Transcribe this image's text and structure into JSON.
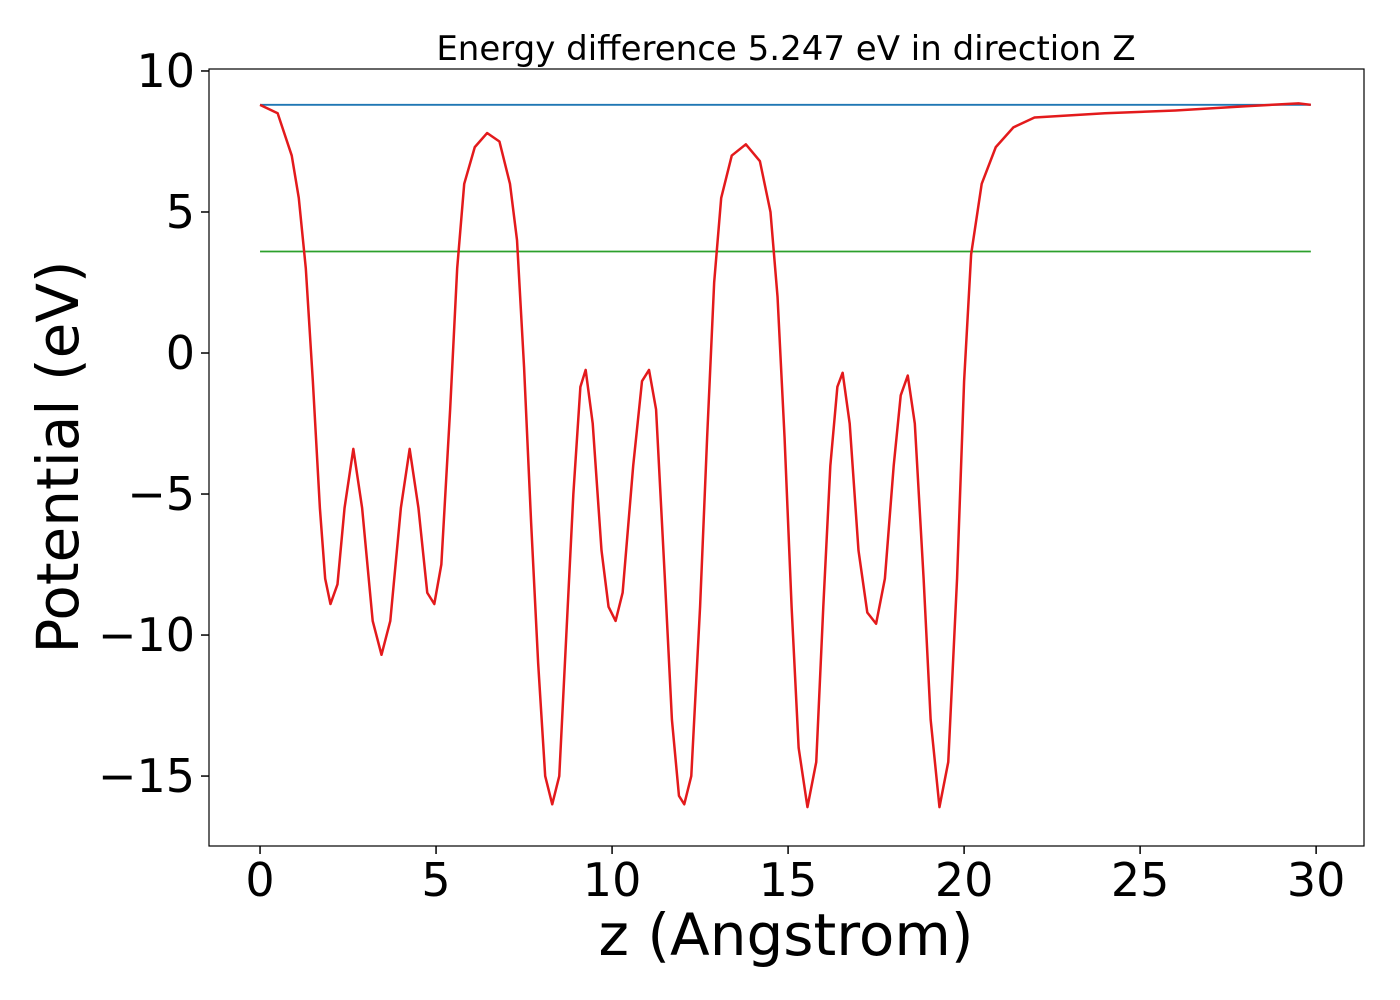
{
  "chart_data": {
    "type": "line",
    "title": "Energy difference 5.247 eV in direction Z",
    "x_label": "z (Angstrom)",
    "y_label": "Potential (eV)",
    "xlim": [
      -1.45,
      31.36
    ],
    "ylim": [
      -17.48,
      10.07
    ],
    "xticks": [
      0,
      5,
      10,
      15,
      20,
      25,
      30
    ],
    "yticks": [
      {
        "value": -15,
        "label": "−15"
      },
      {
        "value": -10,
        "label": "−10"
      },
      {
        "value": -5,
        "label": "−5"
      },
      0,
      5,
      10
    ],
    "series": [
      {
        "color": "#1f77b4",
        "x": [
          0,
          29.85
        ],
        "values": [
          8.8,
          8.8
        ]
      },
      {
        "color": "#2ca02c",
        "x": [
          0,
          29.85
        ],
        "values": [
          3.6,
          3.6
        ]
      },
      {
        "color": "#e31a1c",
        "x": [
          0,
          0.5,
          0.9,
          1.1,
          1.3,
          1.5,
          1.7,
          1.85,
          2.0,
          2.2,
          2.4,
          2.65,
          2.9,
          3.2,
          3.45,
          3.7,
          4.0,
          4.25,
          4.5,
          4.75,
          4.95,
          5.15,
          5.4,
          5.6,
          5.8,
          6.1,
          6.45,
          6.8,
          7.1,
          7.3,
          7.5,
          7.7,
          7.9,
          8.1,
          8.3,
          8.5,
          8.7,
          8.9,
          9.1,
          9.25,
          9.45,
          9.7,
          9.9,
          10.1,
          10.3,
          10.6,
          10.85,
          11.05,
          11.25,
          11.5,
          11.7,
          11.9,
          12.05,
          12.25,
          12.5,
          12.7,
          12.9,
          13.1,
          13.4,
          13.8,
          14.2,
          14.5,
          14.7,
          14.9,
          15.1,
          15.3,
          15.55,
          15.8,
          16.0,
          16.2,
          16.4,
          16.55,
          16.75,
          17.0,
          17.25,
          17.5,
          17.75,
          18.0,
          18.2,
          18.4,
          18.6,
          18.85,
          19.05,
          19.3,
          19.55,
          19.8,
          20.0,
          20.2,
          20.5,
          20.9,
          21.4,
          22,
          24,
          26,
          28,
          29.5,
          29.85
        ],
        "values": [
          8.8,
          8.5,
          7.0,
          5.5,
          3.0,
          -1.0,
          -5.5,
          -8.0,
          -8.9,
          -8.2,
          -5.5,
          -3.4,
          -5.5,
          -9.5,
          -10.7,
          -9.5,
          -5.5,
          -3.4,
          -5.5,
          -8.5,
          -8.9,
          -7.5,
          -2.0,
          3.0,
          6.0,
          7.3,
          7.8,
          7.5,
          6.0,
          4.0,
          -0.5,
          -6,
          -11,
          -15,
          -16,
          -15,
          -10,
          -5,
          -1.2,
          -0.6,
          -2.5,
          -7,
          -9,
          -9.5,
          -8.5,
          -4,
          -1,
          -0.6,
          -2,
          -8,
          -13,
          -15.7,
          -16,
          -15,
          -9,
          -3,
          2.5,
          5.5,
          7.0,
          7.4,
          6.8,
          5.0,
          2.0,
          -3.0,
          -9,
          -14,
          -16.1,
          -14.5,
          -9,
          -4,
          -1.2,
          -0.7,
          -2.5,
          -7,
          -9.2,
          -9.6,
          -8,
          -4,
          -1.5,
          -0.8,
          -2.5,
          -8,
          -13,
          -16.1,
          -14.5,
          -8,
          -1,
          3.5,
          6.0,
          7.3,
          8.0,
          8.35,
          8.5,
          8.6,
          8.75,
          8.85,
          8.8
        ]
      }
    ]
  }
}
